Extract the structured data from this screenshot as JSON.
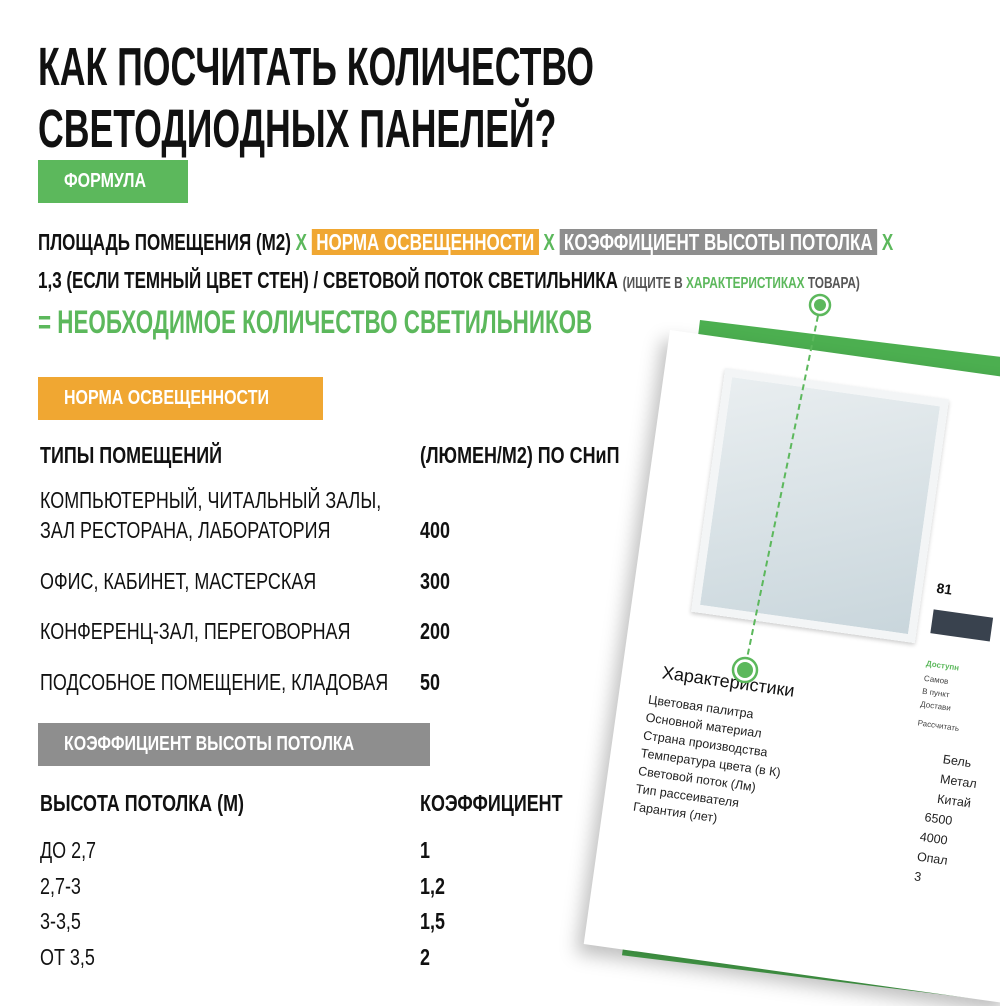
{
  "title": {
    "line1": "КАК ПОСЧИТАТЬ КОЛИЧЕСТВО",
    "line2": "СВЕТОДИОДНЫХ ПАНЕЛЕЙ?"
  },
  "colors": {
    "green": "#5cb85c",
    "orange": "#f0a732",
    "gray": "#8e8e8e"
  },
  "formula": {
    "tag": "ФОРМУЛА",
    "part1": "ПЛОЩАДЬ ПОМЕЩЕНИЯ (М2)",
    "x": "Х",
    "norm": "НОРМА ОСВЕЩЕННОСТИ",
    "coef": "КОЭФФИЦИЕНТ ВЫСОТЫ ПОТОЛКА",
    "part2": "1,3 (ЕСЛИ ТЕМНЫЙ ЦВЕТ СТЕН) / СВЕТОВОЙ ПОТОК СВЕТИЛЬНИКА",
    "hint_pre": "(ИЩИТЕ В",
    "hint_green": "ХАРАКТЕРИСТИКАХ",
    "hint_post": "ТОВАРА)",
    "result": "= НЕОБХОДИМОЕ КОЛИЧЕСТВО СВЕТИЛЬНИКОВ"
  },
  "norms": {
    "tag": "НОРМА ОСВЕЩЕННОСТИ",
    "col1": "ТИПЫ ПОМЕЩЕНИЙ",
    "col2": "(ЛЮМЕН/М2) ПО СНиП",
    "rows": [
      {
        "name1": "КОМПЬЮТЕРНЫЙ, ЧИТАЛЬНЫЙ ЗАЛЫ,",
        "name2": "ЗАЛ РЕСТОРАНА, ЛАБОРАТОРИЯ",
        "value": "400"
      },
      {
        "name1": "ОФИС, КАБИНЕТ, МАСТЕРСКАЯ",
        "value": "300"
      },
      {
        "name1": "КОНФЕРЕНЦ-ЗАЛ, ПЕРЕГОВОРНАЯ",
        "value": "200"
      },
      {
        "name1": "ПОДСОБНОЕ ПОМЕЩЕНИЕ, КЛАДОВАЯ",
        "value": "50"
      }
    ]
  },
  "ceiling": {
    "tag": "КОЭФФИЦИЕНТ ВЫСОТЫ ПОТОЛКА",
    "col1": "ВЫСОТА ПОТОЛКА (М)",
    "col2": "КОЭФФИЦИЕНТ",
    "rows": [
      {
        "height": "ДО 2,7",
        "coef": "1"
      },
      {
        "height": "2,7-3",
        "coef": "1,2"
      },
      {
        "height": "3-3,5",
        "coef": "1,5"
      },
      {
        "height": "ОТ 3,5",
        "coef": "2"
      }
    ]
  },
  "product": {
    "price": "81",
    "side": [
      "Доступн",
      "Самов",
      "В пункт",
      "Достави",
      "Рассчитать"
    ],
    "specs_title": "Характеристики",
    "specs": [
      {
        "label": "Цветовая палитра",
        "value": "Бель"
      },
      {
        "label": "Основной материал",
        "value": "Метал"
      },
      {
        "label": "Страна производства",
        "value": "Китай"
      },
      {
        "label": "Температура цвета (в К)",
        "value": "6500"
      },
      {
        "label": "Световой поток (Лм)",
        "value": "4000"
      },
      {
        "label": "Тип рассеивателя",
        "value": "Опал"
      },
      {
        "label": "Гарантия (лет)",
        "value": "3"
      }
    ]
  }
}
